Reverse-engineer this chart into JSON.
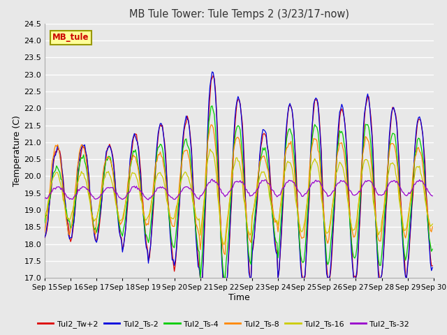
{
  "title": "MB Tule Tower: Tule Temps 2 (3/23/17-now)",
  "xlabel": "Time",
  "ylabel": "Temperature (C)",
  "ylim": [
    17.0,
    24.5
  ],
  "yticks": [
    17.0,
    17.5,
    18.0,
    18.5,
    19.0,
    19.5,
    20.0,
    20.5,
    21.0,
    21.5,
    22.0,
    22.5,
    23.0,
    23.5,
    24.0,
    24.5
  ],
  "days": [
    "Sep 15",
    "Sep 16",
    "Sep 17",
    "Sep 18",
    "Sep 19",
    "Sep 20",
    "Sep 21",
    "Sep 22",
    "Sep 23",
    "Sep 24",
    "Sep 25",
    "Sep 26",
    "Sep 27",
    "Sep 28",
    "Sep 29",
    "Sep 30"
  ],
  "series_colors": [
    "#dd0000",
    "#0000dd",
    "#00cc00",
    "#ff8800",
    "#cccc00",
    "#9900cc"
  ],
  "series_labels": [
    "Tul2_Tw+2",
    "Tul2_Ts-2",
    "Tul2_Ts-4",
    "Tul2_Ts-8",
    "Tul2_Ts-16",
    "Tul2_Ts-32"
  ],
  "bg_color": "#e8e8e8",
  "plot_bg": "#e8e8e8",
  "grid_color": "#ffffff",
  "annotation_text": "MB_tule",
  "annotation_bg": "#ffff99",
  "annotation_border": "#999900"
}
